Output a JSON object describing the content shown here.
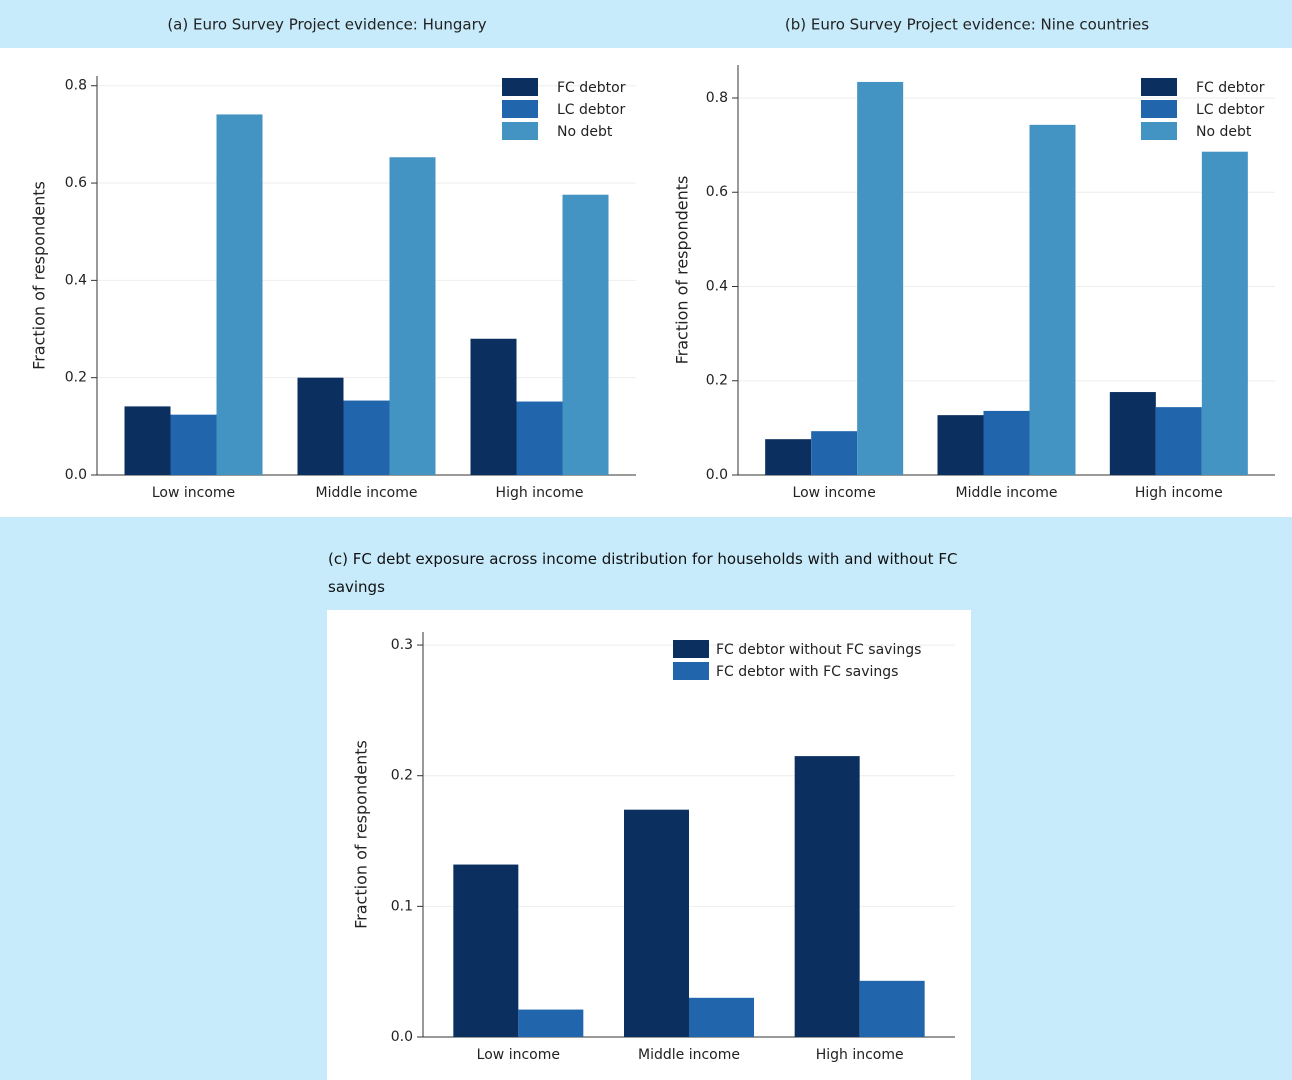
{
  "chart_data": [
    {
      "type": "bar",
      "title": "(a) Euro Survey Project evidence: Hungary",
      "y_label": "Fraction of respondents",
      "categories": [
        "Low income",
        "Middle income",
        "High income"
      ],
      "series": [
        {
          "name": "FC debtor",
          "color": "#0b2f5e",
          "values": [
            0.141,
            0.2,
            0.28
          ]
        },
        {
          "name": "LC debtor",
          "color": "#2166ad",
          "values": [
            0.124,
            0.153,
            0.151
          ]
        },
        {
          "name": "No debt",
          "color": "#4393c3",
          "values": [
            0.741,
            0.653,
            0.576
          ]
        }
      ],
      "ylim": [
        0,
        0.82
      ],
      "yticks": [
        {
          "value": 0,
          "label": "0.0"
        },
        0.2,
        0.4,
        0.6,
        0.8
      ],
      "grid": true,
      "legend": "top-right"
    },
    {
      "type": "bar",
      "title": "(b) Euro Survey Project evidence: Nine countries",
      "y_label": "Fraction of respondents",
      "categories": [
        "Low income",
        "Middle income",
        "High income"
      ],
      "series": [
        {
          "name": "FC debtor",
          "color": "#0b2f5e",
          "values": [
            0.076,
            0.127,
            0.176
          ]
        },
        {
          "name": "LC debtor",
          "color": "#2166ad",
          "values": [
            0.093,
            0.136,
            0.144
          ]
        },
        {
          "name": "No debt",
          "color": "#4393c3",
          "values": [
            0.834,
            0.743,
            0.686
          ]
        }
      ],
      "ylim": [
        0,
        0.87
      ],
      "yticks": [
        {
          "value": 0,
          "label": "0.0"
        },
        0.2,
        0.4,
        0.6,
        0.8
      ],
      "grid": true,
      "legend": "top-right"
    },
    {
      "type": "bar",
      "title": "(c) FC debt exposure across income distribution for households with and without FC savings",
      "y_label": "Fraction of respondents",
      "categories": [
        "Low income",
        "Middle income",
        "High income"
      ],
      "series": [
        {
          "name": "FC debtor without FC savings",
          "color": "#0b2f5e",
          "values": [
            0.132,
            0.174,
            0.215
          ]
        },
        {
          "name": "FC debtor with FC savings",
          "color": "#2166ad",
          "values": [
            0.021,
            0.03,
            0.043
          ]
        }
      ],
      "ylim": [
        0,
        0.31
      ],
      "yticks": [
        {
          "value": 0,
          "label": "0.0"
        },
        0.1,
        0.2,
        0.3
      ],
      "grid": true,
      "legend": "top-right"
    }
  ]
}
